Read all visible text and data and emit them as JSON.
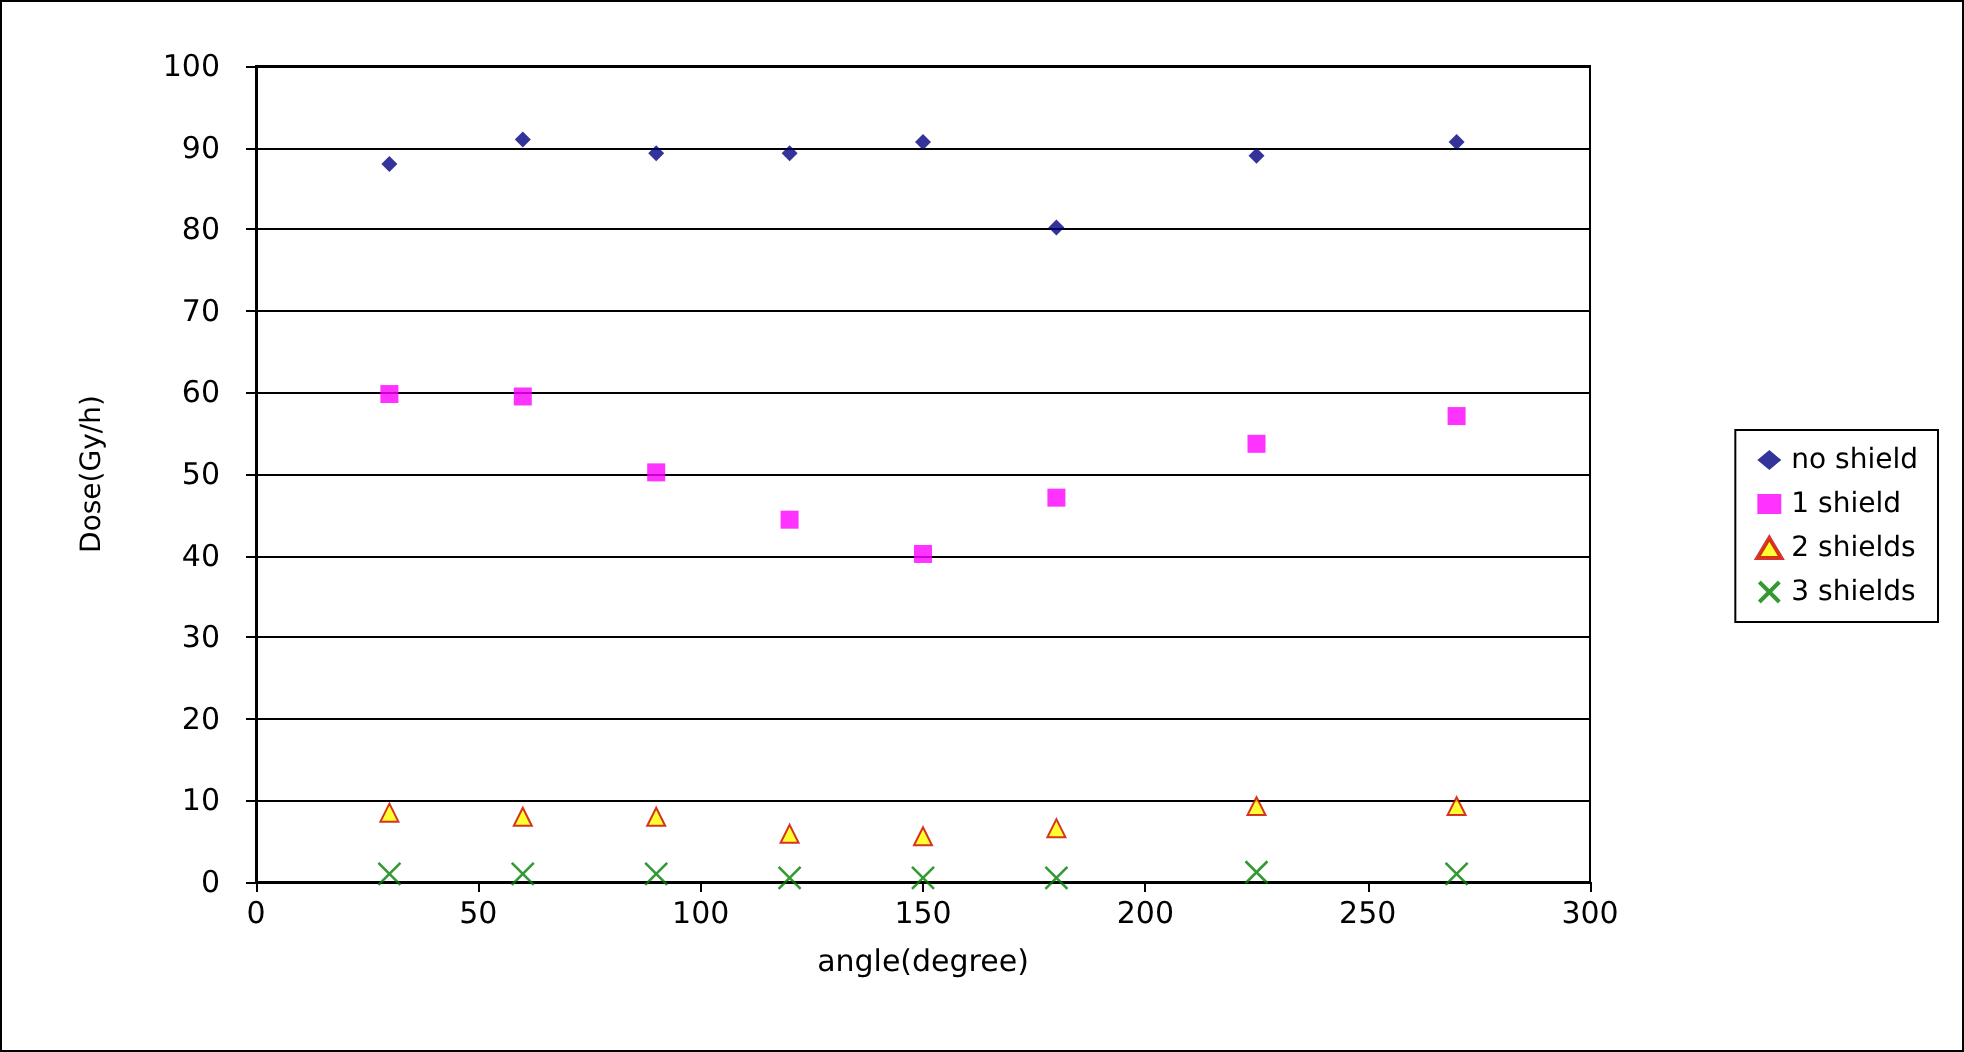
{
  "chart_data": {
    "type": "scatter",
    "xlabel": "angle(degree)",
    "ylabel": "Dose(Gy/h)",
    "x": [
      30,
      60,
      90,
      120,
      150,
      180,
      225,
      270
    ],
    "series": [
      {
        "name": "no shield",
        "color": "#000080",
        "marker": "diamond",
        "values": [
          88.0,
          91.0,
          89.3,
          89.3,
          90.7,
          80.2,
          89.0,
          90.7
        ]
      },
      {
        "name": "1 shield",
        "color": "#ff00ff",
        "marker": "square",
        "values": [
          59.8,
          59.5,
          50.2,
          44.4,
          40.2,
          47.1,
          53.7,
          57.1
        ]
      },
      {
        "name": "2 shields",
        "color": "#ffff00",
        "marker": "triangle",
        "values": [
          8.5,
          8.0,
          8.0,
          5.9,
          5.6,
          6.6,
          9.3,
          9.3
        ]
      },
      {
        "name": "3 shields",
        "color": "#008000",
        "marker": "cross",
        "values": [
          1.0,
          1.0,
          1.0,
          0.5,
          0.5,
          0.5,
          1.2,
          1.0
        ]
      }
    ],
    "xlim": [
      0,
      300
    ],
    "xticks": [
      0,
      50,
      100,
      150,
      200,
      250,
      300
    ],
    "ylim": [
      0,
      100
    ],
    "yticks": [
      0,
      10,
      20,
      30,
      40,
      50,
      60,
      70,
      80,
      90,
      100
    ],
    "grid": "y",
    "legend": "right"
  }
}
